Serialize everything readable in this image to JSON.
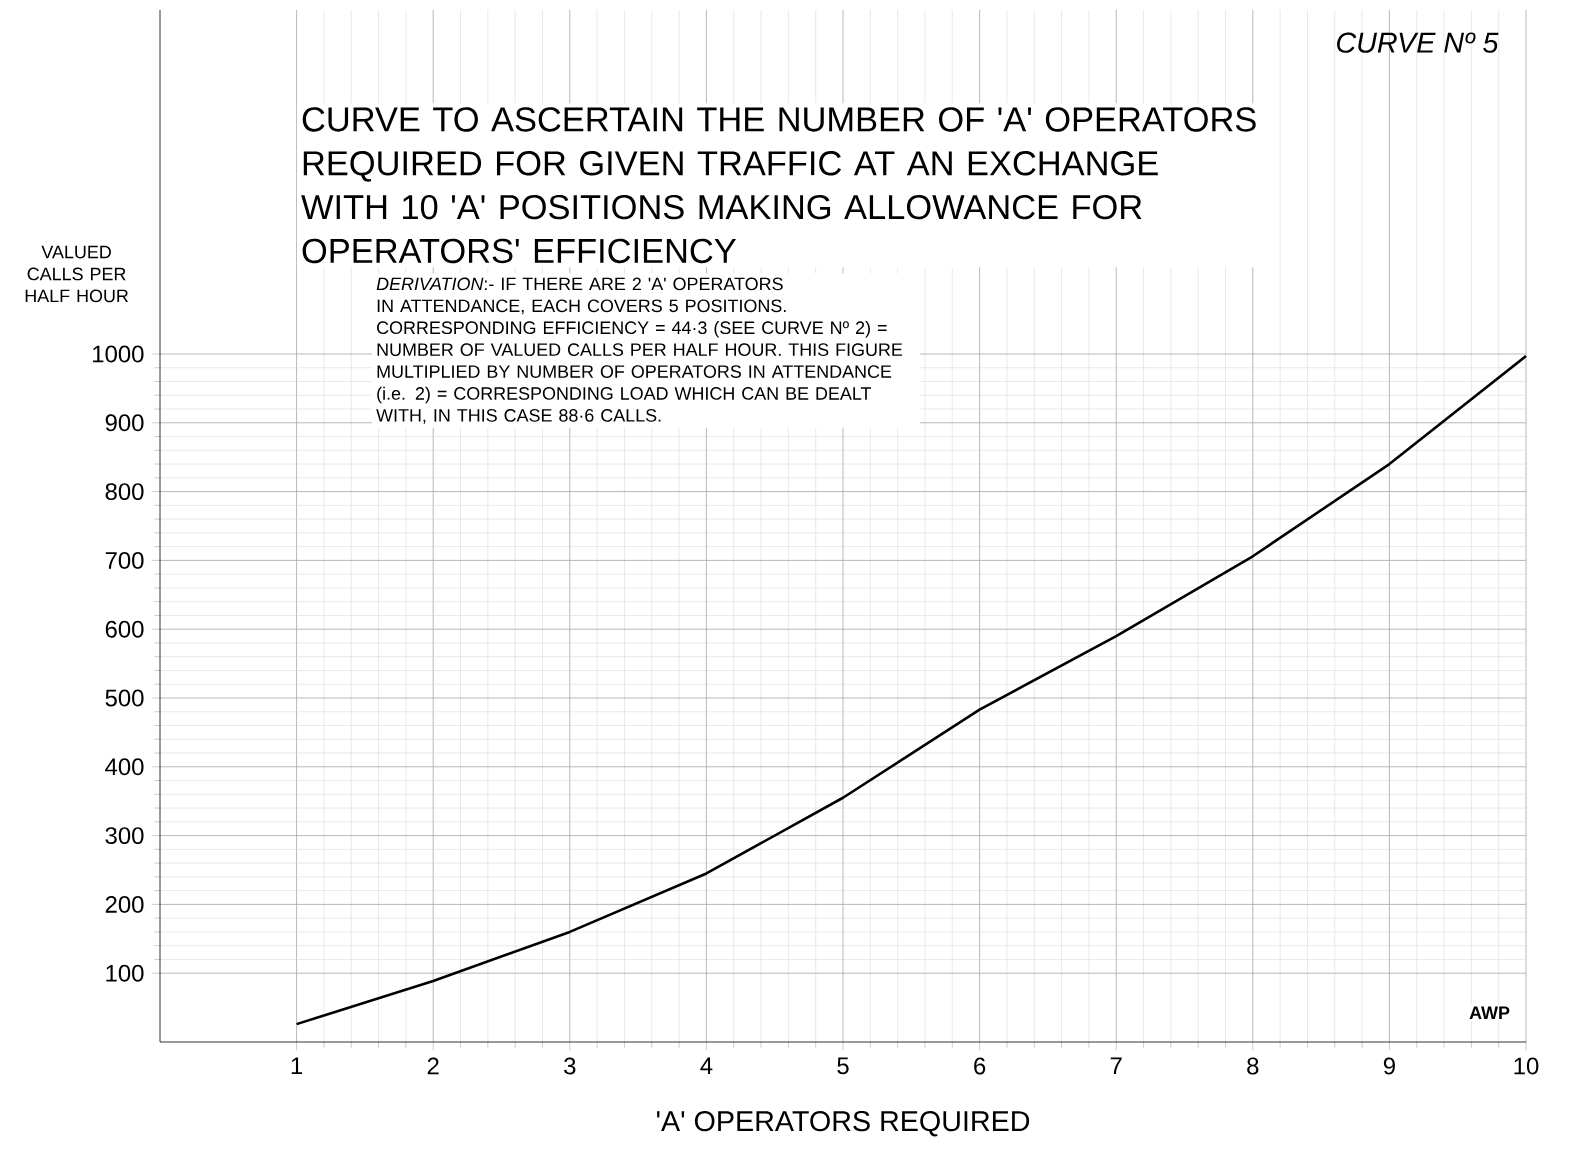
{
  "chart_data": {
    "type": "line",
    "title": "CURVE TO ASCERTAIN THE NUMBER OF 'A' OPERATORS REQUIRED FOR GIVEN TRAFFIC AT AN EXCHANGE WITH 10 'A' POSITIONS MAKING ALLOWANCE FOR OPERATORS' EFFICIENCY",
    "subtitle": "CURVE Nº 5",
    "xlabel": "'A' OPERATORS REQUIRED",
    "ylabel": "VALUED CALLS PER HALF HOUR",
    "annotations": [
      "*DERIVATION*:- IF THERE ARE 2 'A' OPERATORS IN ATTENDANCE, EACH COVERS 5 POSITIONS. CORRESPONDING EFFICIENCY = 44·3 (SEE CURVE Nº 2) = NUMBER OF VALUED CALLS PER HALF HOUR. THIS FIGURE MULTIPLIED BY NUMBER OF OPERATORS IN ATTENDANCE (i.e. 2) = CORRESPONDING LOAD WHICH CAN BE DEALT WITH, IN THIS CASE 88·6 CALLS.",
      "AWP"
    ],
    "x": [
      1,
      2,
      3,
      4,
      5,
      6,
      7,
      8,
      9,
      10
    ],
    "series": [
      {
        "color": "#000000",
        "values": [
          26,
          88.6,
          160,
          245,
          355,
          483,
          590,
          706,
          840,
          997
        ]
      }
    ],
    "xlim": [
      0,
      10
    ],
    "ylim": [
      0,
      1500
    ],
    "xticks": [
      1,
      2,
      3,
      4,
      5,
      6,
      7,
      8,
      9,
      10
    ],
    "yticks": [
      100,
      200,
      300,
      400,
      500,
      600,
      700,
      800,
      900,
      1000
    ],
    "grid": true,
    "marker": "none",
    "line_style": "solid"
  }
}
